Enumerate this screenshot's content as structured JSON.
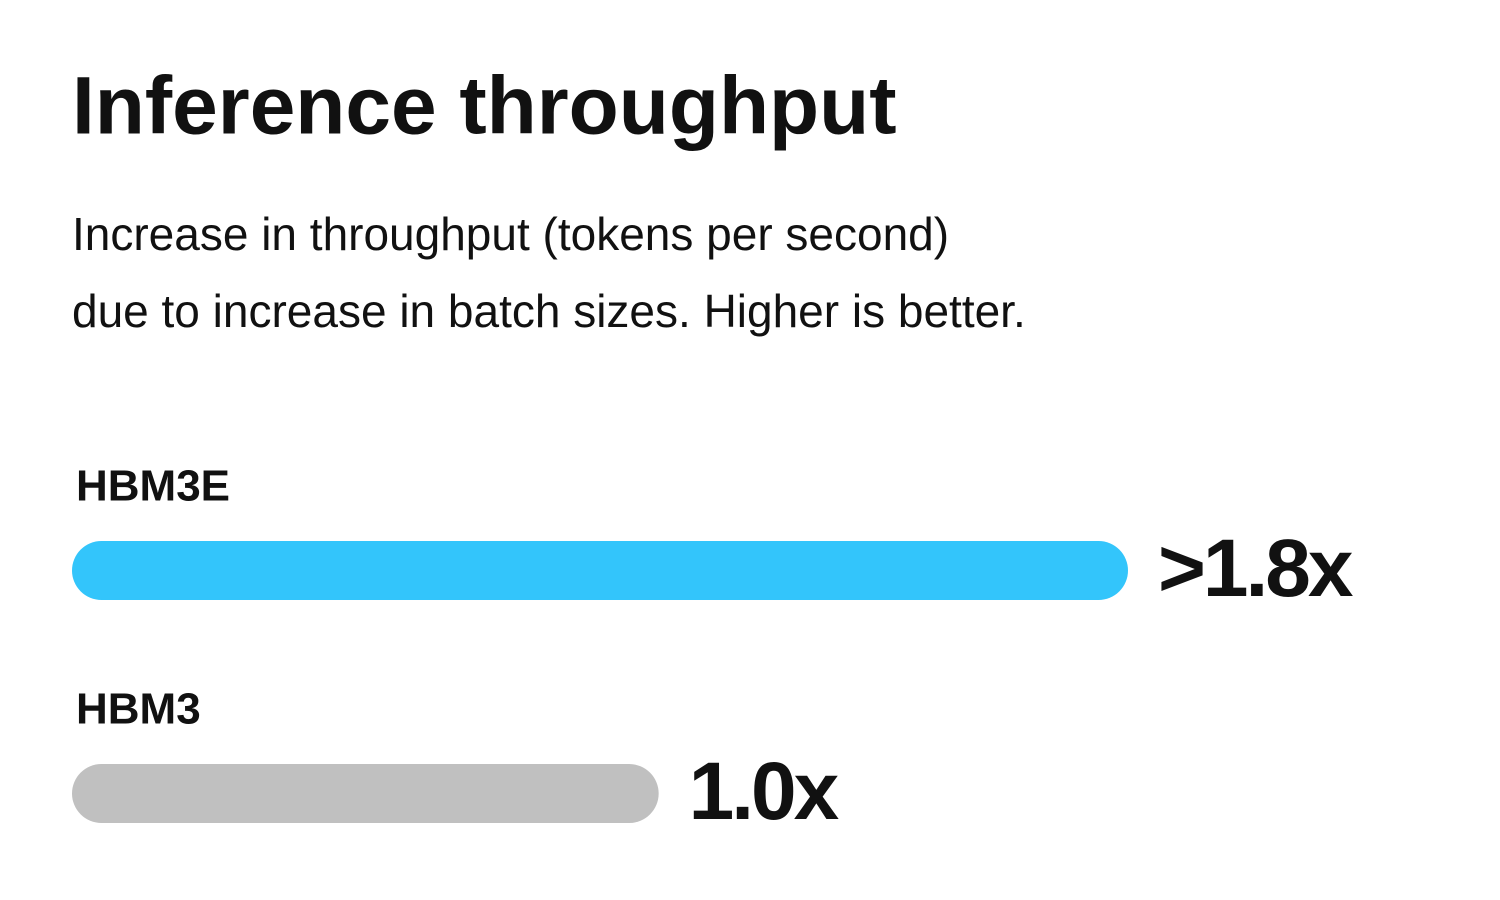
{
  "chart_data": {
    "type": "bar",
    "orientation": "horizontal",
    "title": "Inference throughput",
    "subtitle": [
      "Increase in throughput (tokens per second)",
      "due to increase in batch sizes. Higher is better."
    ],
    "categories": [
      "HBM3E",
      "HBM3"
    ],
    "values": [
      1.8,
      1.0
    ],
    "value_labels": [
      ">1.8x",
      "1.0x"
    ],
    "colors": [
      "#33c5fb",
      "#c0c0c0"
    ]
  }
}
